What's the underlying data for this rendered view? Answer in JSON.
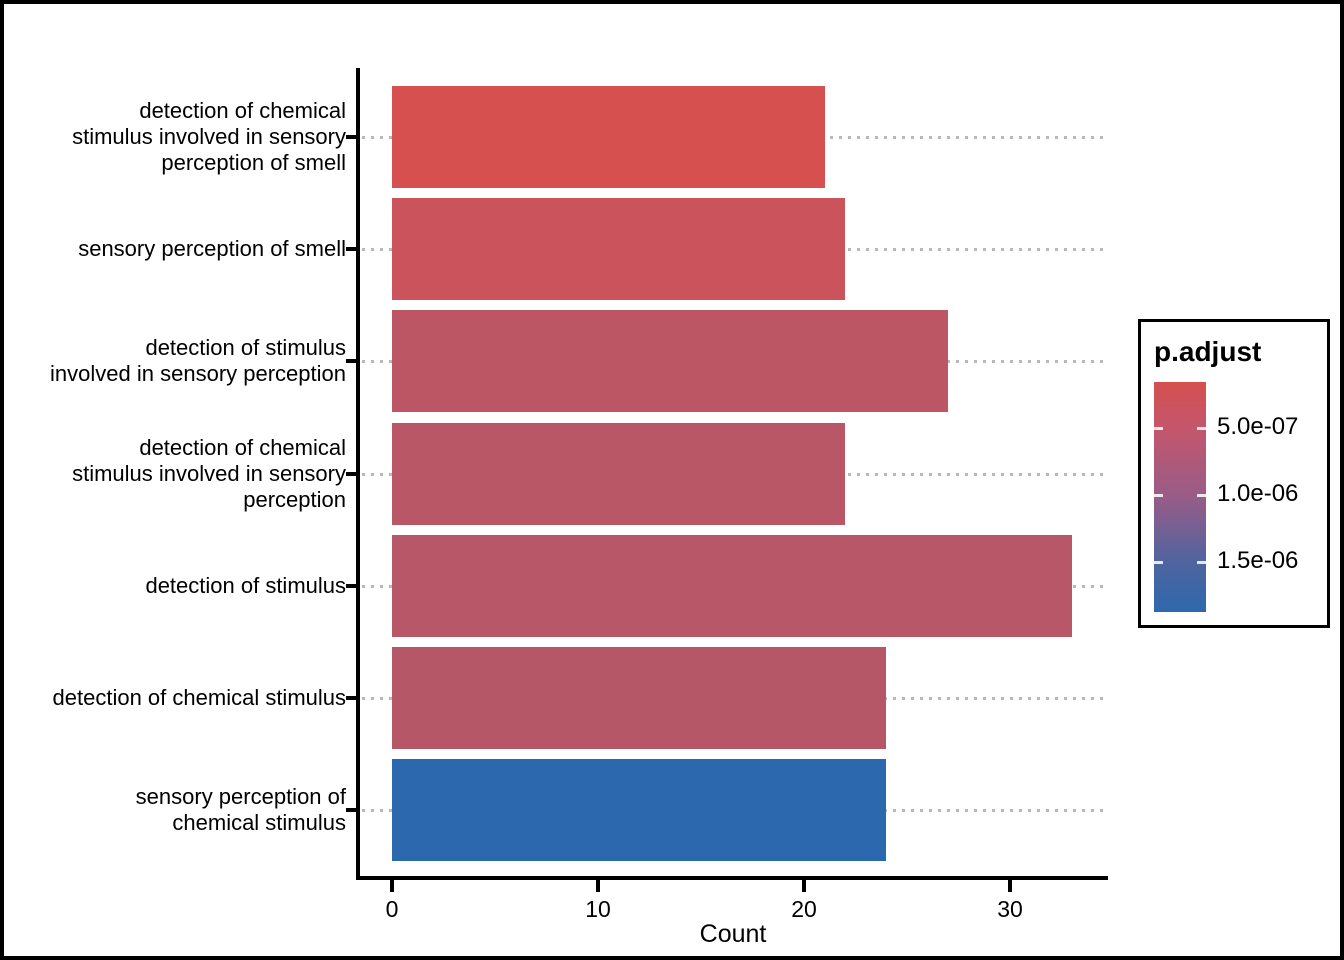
{
  "figure": {
    "background": "#ffffff",
    "border_color": "#000000",
    "axis_color": "#000000",
    "gridline_color": "#b9b9b9"
  },
  "chart_data": {
    "type": "bar",
    "orientation": "horizontal",
    "title": "",
    "xlabel": "Count",
    "ylabel": "",
    "xlim": [
      0,
      34.7
    ],
    "x_ticks": [
      0,
      10,
      20,
      30
    ],
    "grid": "horizontal dotted light-gray gridlines at each category, drawn behind bars",
    "legend_position": "right",
    "categories": [
      "detection of chemical\nstimulus involved in sensory\nperception of smell",
      "sensory perception of smell",
      "detection of stimulus\ninvolved in sensory perception",
      "detection of chemical\nstimulus involved in sensory\nperception",
      "detection of stimulus",
      "detection of chemical stimulus",
      "sensory perception of\nchemical stimulus"
    ],
    "values": [
      21,
      22,
      27,
      22,
      33,
      24,
      24
    ],
    "bar_colors": [
      "#d5504f",
      "#ca535c",
      "#bd5664",
      "#b95766",
      "#b75767",
      "#b65767",
      "#2b68ad"
    ],
    "legend": {
      "title": "p.adjust",
      "type": "continuous-color-gradient",
      "tick_labels": [
        "5.0e-07",
        "1.0e-06",
        "1.5e-06"
      ],
      "top_color": "#d5504f",
      "bottom_color": "#2e68ad"
    }
  }
}
